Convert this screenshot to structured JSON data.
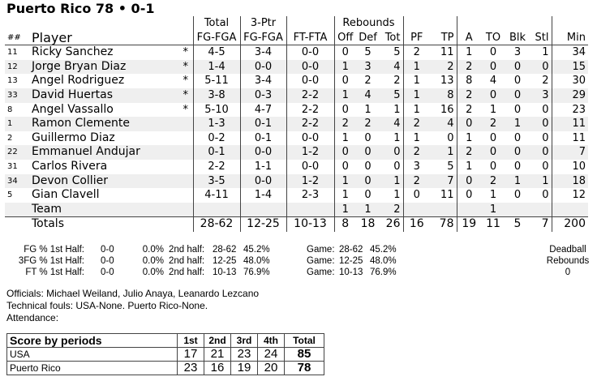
{
  "title": "Puerto Rico 78 • 0-1",
  "group_headers": {
    "total": "Total",
    "three": "3-Ptr",
    "rebounds": "Rebounds"
  },
  "columns": [
    "##",
    "Player",
    "",
    "FG-FGA",
    "FG-FGA",
    "FT-FTA",
    "Off",
    "Def",
    "Tot",
    "PF",
    "TP",
    "A",
    "TO",
    "Blk",
    "Stl",
    "Min"
  ],
  "players": [
    [
      "11",
      "Ricky Sanchez",
      "*",
      "4-5",
      "3-4",
      "0-0",
      "0",
      "5",
      "5",
      "2",
      "11",
      "1",
      "0",
      "3",
      "1",
      "34"
    ],
    [
      "12",
      "Jorge Bryan Diaz",
      "*",
      "1-4",
      "0-0",
      "0-0",
      "1",
      "3",
      "4",
      "1",
      "2",
      "2",
      "0",
      "0",
      "0",
      "15"
    ],
    [
      "13",
      "Angel Rodriguez",
      "*",
      "5-11",
      "3-4",
      "0-0",
      "0",
      "2",
      "2",
      "1",
      "13",
      "8",
      "4",
      "0",
      "2",
      "30"
    ],
    [
      "33",
      "David Huertas",
      "*",
      "3-8",
      "0-3",
      "2-2",
      "1",
      "4",
      "5",
      "1",
      "8",
      "2",
      "0",
      "0",
      "3",
      "29"
    ],
    [
      "8",
      "Angel Vassallo",
      "*",
      "5-10",
      "4-7",
      "2-2",
      "0",
      "1",
      "1",
      "1",
      "16",
      "2",
      "1",
      "0",
      "0",
      "23"
    ],
    [
      "1",
      "Ramon Clemente",
      "",
      "1-3",
      "0-1",
      "2-2",
      "2",
      "2",
      "4",
      "2",
      "4",
      "0",
      "2",
      "1",
      "0",
      "11"
    ],
    [
      "2",
      "Guillermo Diaz",
      "",
      "0-2",
      "0-1",
      "0-0",
      "1",
      "0",
      "1",
      "1",
      "0",
      "1",
      "0",
      "0",
      "0",
      "11"
    ],
    [
      "22",
      "Emmanuel Andujar",
      "",
      "0-1",
      "0-0",
      "1-2",
      "0",
      "0",
      "0",
      "2",
      "1",
      "2",
      "0",
      "0",
      "0",
      "7"
    ],
    [
      "31",
      "Carlos Rivera",
      "",
      "2-2",
      "1-1",
      "0-0",
      "0",
      "0",
      "0",
      "3",
      "5",
      "1",
      "0",
      "0",
      "0",
      "10"
    ],
    [
      "34",
      "Devon Collier",
      "",
      "3-5",
      "0-0",
      "1-2",
      "1",
      "0",
      "1",
      "2",
      "7",
      "0",
      "2",
      "1",
      "1",
      "18"
    ],
    [
      "5",
      "Gian Clavell",
      "",
      "4-11",
      "1-4",
      "2-3",
      "1",
      "0",
      "1",
      "0",
      "11",
      "0",
      "1",
      "0",
      "0",
      "12"
    ],
    [
      "",
      "Team",
      "",
      "",
      "",
      "",
      "1",
      "1",
      "2",
      "",
      "",
      "",
      "1",
      "",
      "",
      ""
    ]
  ],
  "totals": [
    "",
    "Totals",
    "",
    "28-62",
    "12-25",
    "10-13",
    "8",
    "18",
    "26",
    "16",
    "78",
    "19",
    "11",
    "5",
    "7",
    "200"
  ],
  "shooting": [
    {
      "label": "FG % 1st Half:",
      "h1": "0-0",
      "h1p": "0.0%",
      "h2l": "2nd half:",
      "h2": "28-62",
      "h2p": "45.2%",
      "gl": "Game:",
      "g": "28-62",
      "gp": "45.2%"
    },
    {
      "label": "3FG % 1st Half:",
      "h1": "0-0",
      "h1p": "0.0%",
      "h2l": "2nd half:",
      "h2": "12-25",
      "h2p": "48.0%",
      "gl": "Game:",
      "g": "12-25",
      "gp": "48.0%"
    },
    {
      "label": "FT % 1st Half:",
      "h1": "0-0",
      "h1p": "0.0%",
      "h2l": "2nd half:",
      "h2": "10-13",
      "h2p": "76.9%",
      "gl": "Game:",
      "g": "10-13",
      "gp": "76.9%"
    }
  ],
  "deadball": {
    "line1": "Deadball",
    "line2": "Rebounds",
    "value": "0"
  },
  "officials": "Officials: Michael Weiland, Julio Anaya, Leanardo Lezcano",
  "technicals": "Technical fouls: USA-None. Puerto Rico-None.",
  "attendance": "Attendance:",
  "periods": {
    "header": [
      "Score by periods",
      "1st",
      "2nd",
      "3rd",
      "4th",
      "Total"
    ],
    "rows": [
      [
        "USA",
        "17",
        "21",
        "23",
        "24",
        "85"
      ],
      [
        "Puerto Rico",
        "23",
        "16",
        "19",
        "20",
        "78"
      ]
    ]
  }
}
